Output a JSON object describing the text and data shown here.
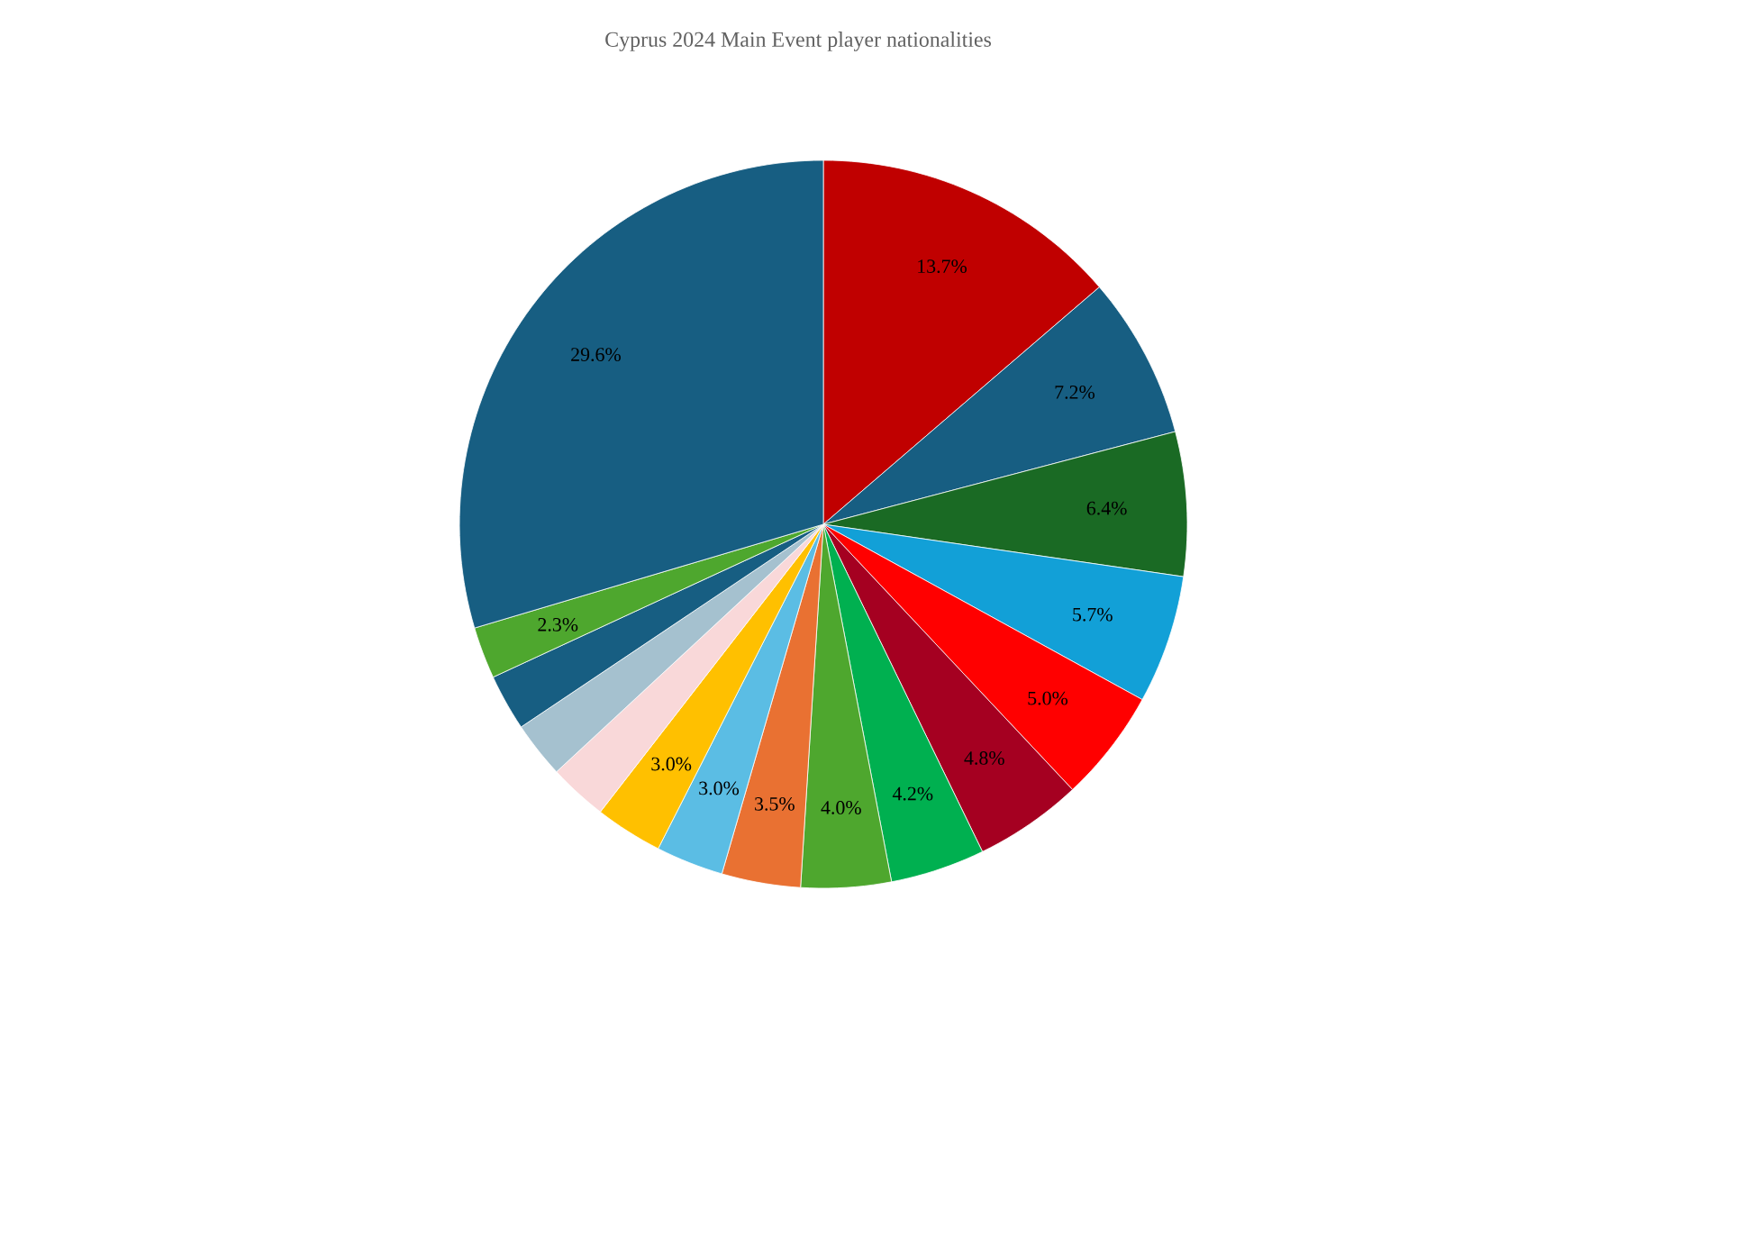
{
  "chart_data": {
    "type": "pie",
    "title": "Cyprus 2024 Main Event player nationalities",
    "categories": [
      null,
      null,
      null,
      null,
      null,
      null,
      null,
      null,
      null,
      null,
      null,
      null,
      null,
      null,
      null,
      null
    ],
    "values": [
      13.7,
      7.2,
      6.4,
      5.7,
      5.0,
      4.8,
      4.2,
      4.0,
      3.5,
      3.0,
      3.0,
      2.6,
      2.5,
      2.5,
      2.3,
      29.6
    ],
    "value_labels": [
      "13.7%",
      "7.2%",
      "6.4%",
      "5.7%",
      "5.0%",
      "4.8%",
      "4.2%",
      "4.0%",
      "3.5%",
      "3.0%",
      "3.0%",
      null,
      null,
      null,
      "2.3%",
      "29.6%"
    ],
    "colors": [
      "#c00000",
      "#175e82",
      "#1a6a24",
      "#12a0d7",
      "#ff0000",
      "#a50021",
      "#00b050",
      "#4ea72e",
      "#e97132",
      "#5bbde4",
      "#ffc000",
      "#f9d8d9",
      "#a5c1cf",
      "#175e82",
      "#4ea72e",
      "#175e82"
    ]
  }
}
